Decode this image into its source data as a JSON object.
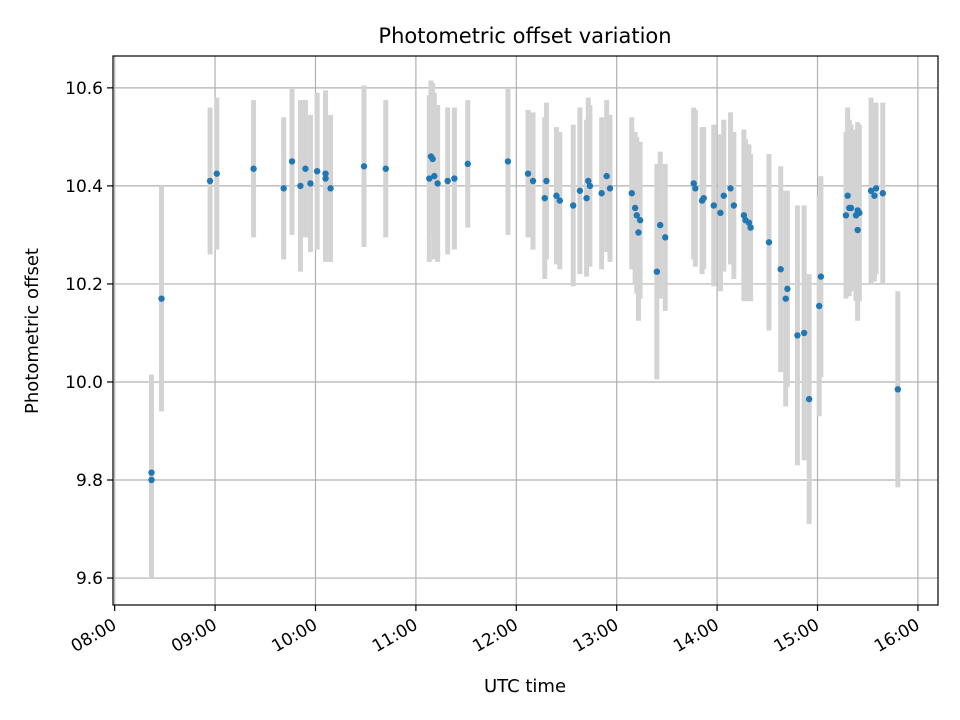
{
  "chart_data": {
    "type": "scatter",
    "title": "Photometric offset variation",
    "xlabel": "UTC time",
    "ylabel": "Photometric offset",
    "xlim": [
      "07:59",
      "16:12"
    ],
    "ylim": [
      9.545,
      10.665
    ],
    "grid": true,
    "x_ticks": [
      "08:00",
      "09:00",
      "10:00",
      "11:00",
      "12:00",
      "13:00",
      "14:00",
      "15:00",
      "16:00"
    ],
    "y_ticks": [
      9.6,
      9.8,
      10.0,
      10.2,
      10.4,
      10.6
    ],
    "y_tick_labels": [
      "9.6",
      "9.8",
      "10.0",
      "10.2",
      "10.4",
      "10.6"
    ],
    "colors": {
      "point": "#1f77b4",
      "errorbar": "#d3d3d3",
      "grid": "#b0b0b0"
    },
    "points": [
      {
        "x": "08:22",
        "y": 9.8,
        "err": 0.2
      },
      {
        "x": "08:22",
        "y": 9.815,
        "err": 0.2
      },
      {
        "x": "08:28",
        "y": 10.17,
        "err": 0.23
      },
      {
        "x": "08:57",
        "y": 10.41,
        "err": 0.15
      },
      {
        "x": "09:01",
        "y": 10.425,
        "err": 0.155
      },
      {
        "x": "09:23",
        "y": 10.435,
        "err": 0.14
      },
      {
        "x": "09:41",
        "y": 10.395,
        "err": 0.145
      },
      {
        "x": "09:46",
        "y": 10.45,
        "err": 0.15
      },
      {
        "x": "09:51",
        "y": 10.4,
        "err": 0.175
      },
      {
        "x": "09:54",
        "y": 10.435,
        "err": 0.14
      },
      {
        "x": "09:57",
        "y": 10.405,
        "err": 0.14
      },
      {
        "x": "10:01",
        "y": 10.43,
        "err": 0.16
      },
      {
        "x": "10:06",
        "y": 10.415,
        "err": 0.17
      },
      {
        "x": "10:06",
        "y": 10.425,
        "err": 0.17
      },
      {
        "x": "10:09",
        "y": 10.395,
        "err": 0.15
      },
      {
        "x": "10:29",
        "y": 10.44,
        "err": 0.165
      },
      {
        "x": "10:42",
        "y": 10.435,
        "err": 0.14
      },
      {
        "x": "11:08",
        "y": 10.415,
        "err": 0.17
      },
      {
        "x": "11:09",
        "y": 10.46,
        "err": 0.155
      },
      {
        "x": "11:10",
        "y": 10.455,
        "err": 0.155
      },
      {
        "x": "11:11",
        "y": 10.42,
        "err": 0.17
      },
      {
        "x": "11:13",
        "y": 10.405,
        "err": 0.16
      },
      {
        "x": "11:19",
        "y": 10.41,
        "err": 0.15
      },
      {
        "x": "11:23",
        "y": 10.415,
        "err": 0.145
      },
      {
        "x": "11:31",
        "y": 10.445,
        "err": 0.13
      },
      {
        "x": "11:55",
        "y": 10.45,
        "err": 0.15
      },
      {
        "x": "12:07",
        "y": 10.425,
        "err": 0.13
      },
      {
        "x": "12:10",
        "y": 10.41,
        "err": 0.14
      },
      {
        "x": "12:17",
        "y": 10.375,
        "err": 0.165
      },
      {
        "x": "12:18",
        "y": 10.41,
        "err": 0.16
      },
      {
        "x": "12:24",
        "y": 10.38,
        "err": 0.14
      },
      {
        "x": "12:26",
        "y": 10.37,
        "err": 0.14
      },
      {
        "x": "12:34",
        "y": 10.36,
        "err": 0.165
      },
      {
        "x": "12:38",
        "y": 10.39,
        "err": 0.17
      },
      {
        "x": "12:42",
        "y": 10.375,
        "err": 0.16
      },
      {
        "x": "12:43",
        "y": 10.41,
        "err": 0.17
      },
      {
        "x": "12:44",
        "y": 10.4,
        "err": 0.165
      },
      {
        "x": "12:51",
        "y": 10.385,
        "err": 0.155
      },
      {
        "x": "12:54",
        "y": 10.42,
        "err": 0.155
      },
      {
        "x": "12:56",
        "y": 10.395,
        "err": 0.15
      },
      {
        "x": "13:09",
        "y": 10.385,
        "err": 0.155
      },
      {
        "x": "13:11",
        "y": 10.355,
        "err": 0.155
      },
      {
        "x": "13:12",
        "y": 10.34,
        "err": 0.16
      },
      {
        "x": "13:13",
        "y": 10.305,
        "err": 0.18
      },
      {
        "x": "13:14",
        "y": 10.33,
        "err": 0.16
      },
      {
        "x": "13:24",
        "y": 10.225,
        "err": 0.22
      },
      {
        "x": "13:26",
        "y": 10.32,
        "err": 0.15
      },
      {
        "x": "13:29",
        "y": 10.295,
        "err": 0.15
      },
      {
        "x": "13:46",
        "y": 10.405,
        "err": 0.155
      },
      {
        "x": "13:47",
        "y": 10.395,
        "err": 0.16
      },
      {
        "x": "13:51",
        "y": 10.37,
        "err": 0.15
      },
      {
        "x": "13:52",
        "y": 10.375,
        "err": 0.145
      },
      {
        "x": "13:58",
        "y": 10.36,
        "err": 0.165
      },
      {
        "x": "14:02",
        "y": 10.345,
        "err": 0.16
      },
      {
        "x": "14:04",
        "y": 10.38,
        "err": 0.155
      },
      {
        "x": "14:08",
        "y": 10.395,
        "err": 0.155
      },
      {
        "x": "14:10",
        "y": 10.36,
        "err": 0.15
      },
      {
        "x": "14:16",
        "y": 10.34,
        "err": 0.175
      },
      {
        "x": "14:17",
        "y": 10.33,
        "err": 0.165
      },
      {
        "x": "14:19",
        "y": 10.325,
        "err": 0.16
      },
      {
        "x": "14:20",
        "y": 10.315,
        "err": 0.15
      },
      {
        "x": "14:31",
        "y": 10.285,
        "err": 0.18
      },
      {
        "x": "14:38",
        "y": 10.23,
        "err": 0.21
      },
      {
        "x": "14:41",
        "y": 10.17,
        "err": 0.22
      },
      {
        "x": "14:42",
        "y": 10.19,
        "err": 0.2
      },
      {
        "x": "14:48",
        "y": 10.095,
        "err": 0.265
      },
      {
        "x": "14:52",
        "y": 10.1,
        "err": 0.26
      },
      {
        "x": "14:55",
        "y": 9.965,
        "err": 0.255
      },
      {
        "x": "15:01",
        "y": 10.155,
        "err": 0.225
      },
      {
        "x": "15:02",
        "y": 10.215,
        "err": 0.205
      },
      {
        "x": "15:17",
        "y": 10.34,
        "err": 0.17
      },
      {
        "x": "15:18",
        "y": 10.38,
        "err": 0.18
      },
      {
        "x": "15:19",
        "y": 10.355,
        "err": 0.18
      },
      {
        "x": "15:20",
        "y": 10.355,
        "err": 0.17
      },
      {
        "x": "15:23",
        "y": 10.34,
        "err": 0.175
      },
      {
        "x": "15:24",
        "y": 10.35,
        "err": 0.18
      },
      {
        "x": "15:24",
        "y": 10.31,
        "err": 0.185
      },
      {
        "x": "15:25",
        "y": 10.345,
        "err": 0.18
      },
      {
        "x": "15:32",
        "y": 10.39,
        "err": 0.19
      },
      {
        "x": "15:34",
        "y": 10.38,
        "err": 0.175
      },
      {
        "x": "15:35",
        "y": 10.395,
        "err": 0.175
      },
      {
        "x": "15:39",
        "y": 10.385,
        "err": 0.185
      },
      {
        "x": "15:48",
        "y": 9.985,
        "err": 0.2
      }
    ]
  }
}
